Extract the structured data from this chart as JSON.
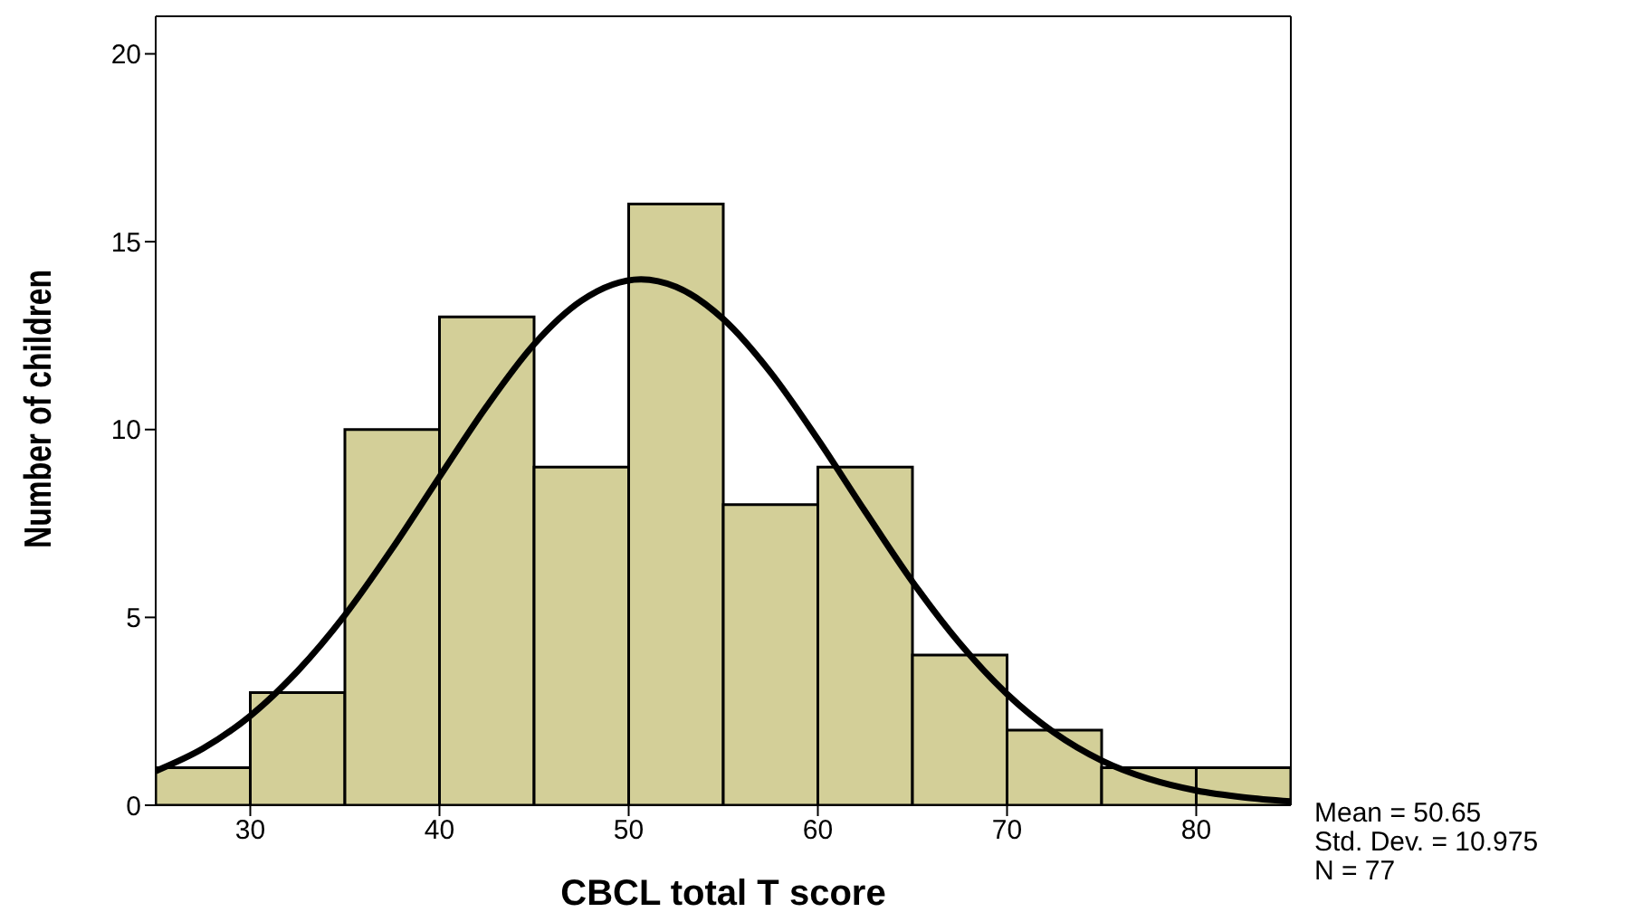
{
  "chart_data": {
    "type": "histogram",
    "xlabel": "CBCL total T score",
    "ylabel": "Number of children",
    "bins": [
      25,
      30,
      35,
      40,
      45,
      50,
      55,
      60,
      65,
      70,
      75,
      80,
      85
    ],
    "values": [
      1,
      3,
      10,
      13,
      9,
      16,
      8,
      9,
      4,
      2,
      1,
      1
    ],
    "color": "#d3cf98",
    "series": [
      {
        "type": "line",
        "color": "#000000",
        "x": [
          25,
          27.5,
          30,
          32.5,
          35,
          37.5,
          40,
          42.5,
          45,
          47.5,
          50.65,
          52.5,
          55,
          57.5,
          60,
          62.5,
          65,
          67.5,
          70,
          72.5,
          75,
          77.5,
          80,
          82.5,
          85
        ],
        "values": [
          0.91,
          1.51,
          2.38,
          3.57,
          5.06,
          6.83,
          8.74,
          10.62,
          12.27,
          13.43,
          14,
          13.8,
          12.94,
          11.52,
          9.74,
          7.82,
          5.95,
          4.31,
          2.96,
          1.93,
          1.19,
          0.7,
          0.39,
          0.21,
          0.1
        ]
      }
    ],
    "xlim": [
      25,
      85
    ],
    "xticks": [
      30,
      40,
      50,
      60,
      70,
      80
    ],
    "ylim": [
      0,
      21
    ],
    "yticks": [
      0,
      5,
      10,
      15,
      20
    ],
    "grid": false,
    "legend": false,
    "marker": "none",
    "annotations": [
      "Mean = 50.65",
      "Std. Dev. = 10.975",
      "N = 77"
    ]
  }
}
